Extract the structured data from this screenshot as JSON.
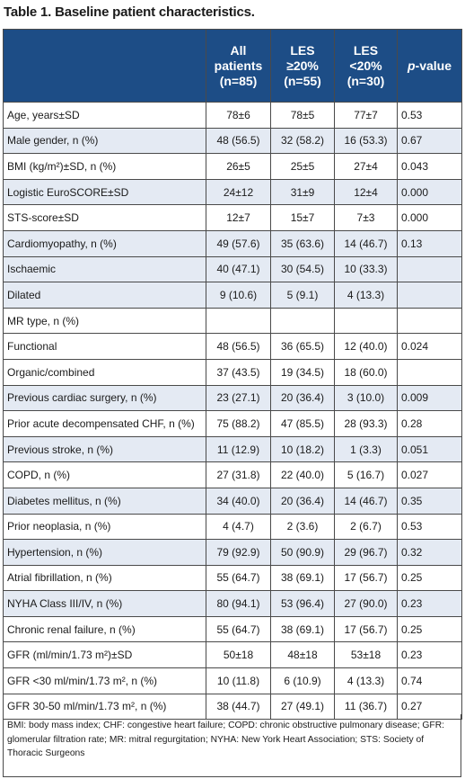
{
  "title": "Table 1. Baseline patient characteristics.",
  "header": {
    "all": [
      "All",
      "patients",
      "(n=85)"
    ],
    "les_hi": [
      "LES",
      "≥20%",
      "(n=55)"
    ],
    "les_lo": [
      "LES",
      "<20%",
      "(n=30)"
    ],
    "pvalue_p": "p",
    "pvalue_rest": "-value"
  },
  "rows": [
    {
      "label": "Age, years±SD",
      "all": "78±6",
      "hi": "78±5",
      "lo": "77±7",
      "p": "0.53"
    },
    {
      "label": "Male gender, n (%)",
      "all": "48 (56.5)",
      "hi": "32 (58.2)",
      "lo": "16 (53.3)",
      "p": "0.67"
    },
    {
      "label": "BMI (kg/m²)±SD, n (%)",
      "all": "26±5",
      "hi": "25±5",
      "lo": "27±4",
      "p": "0.043"
    },
    {
      "label": "Logistic EuroSCORE±SD",
      "all": "24±12",
      "hi": "31±9",
      "lo": "12±4",
      "p": "0.000"
    },
    {
      "label": "STS-score±SD",
      "all": "12±7",
      "hi": "15±7",
      "lo": "7±3",
      "p": "0.000"
    },
    {
      "label": "Cardiomyopathy, n (%)",
      "all": "49 (57.6)",
      "hi": "35 (63.6)",
      "lo": "14 (46.7)",
      "p": "0.13"
    },
    {
      "label": "Ischaemic",
      "all": "40 (47.1)",
      "hi": "30 (54.5)",
      "lo": "10 (33.3)",
      "p": ""
    },
    {
      "label": "Dilated",
      "all": "9 (10.6)",
      "hi": "5 (9.1)",
      "lo": "4 (13.3)",
      "p": ""
    },
    {
      "label": "MR type, n (%)",
      "all": "",
      "hi": "",
      "lo": "",
      "p": ""
    },
    {
      "label": "Functional",
      "all": "48 (56.5)",
      "hi": "36 (65.5)",
      "lo": "12 (40.0)",
      "p": "0.024"
    },
    {
      "label": "Organic/combined",
      "all": "37 (43.5)",
      "hi": "19 (34.5)",
      "lo": "18 (60.0)",
      "p": ""
    },
    {
      "label": "Previous cardiac surgery, n (%)",
      "all": "23 (27.1)",
      "hi": "20 (36.4)",
      "lo": "3 (10.0)",
      "p": "0.009"
    },
    {
      "label": "Prior acute decompensated CHF, n (%)",
      "all": "75 (88.2)",
      "hi": "47 (85.5)",
      "lo": "28 (93.3)",
      "p": "0.28"
    },
    {
      "label": "Previous stroke, n (%)",
      "all": "11 (12.9)",
      "hi": "10 (18.2)",
      "lo": "1 (3.3)",
      "p": "0.051"
    },
    {
      "label": "COPD, n (%)",
      "all": "27 (31.8)",
      "hi": "22 (40.0)",
      "lo": "5 (16.7)",
      "p": "0.027"
    },
    {
      "label": "Diabetes mellitus, n (%)",
      "all": "34 (40.0)",
      "hi": "20 (36.4)",
      "lo": "14 (46.7)",
      "p": "0.35"
    },
    {
      "label": "Prior neoplasia, n (%)",
      "all": "4 (4.7)",
      "hi": "2 (3.6)",
      "lo": "2 (6.7)",
      "p": "0.53"
    },
    {
      "label": "Hypertension, n (%)",
      "all": "79 (92.9)",
      "hi": "50 (90.9)",
      "lo": "29 (96.7)",
      "p": "0.32"
    },
    {
      "label": "Atrial fibrillation, n (%)",
      "all": "55 (64.7)",
      "hi": "38 (69.1)",
      "lo": "17 (56.7)",
      "p": "0.25"
    },
    {
      "label": "NYHA Class III/IV, n (%)",
      "all": "80 (94.1)",
      "hi": "53 (96.4)",
      "lo": "27 (90.0)",
      "p": "0.23"
    },
    {
      "label": "Chronic renal failure, n (%)",
      "all": "55 (64.7)",
      "hi": "38 (69.1)",
      "lo": "17 (56.7)",
      "p": "0.25"
    },
    {
      "label": "GFR (ml/min/1.73 m²)±SD",
      "all": "50±18",
      "hi": "48±18",
      "lo": "53±18",
      "p": "0.23"
    },
    {
      "label": "GFR <30 ml/min/1.73 m², n (%)",
      "all": "10 (11.8)",
      "hi": "6 (10.9)",
      "lo": "4 (13.3)",
      "p": "0.74"
    },
    {
      "label": "GFR 30-50 ml/min/1.73 m², n (%)",
      "all": "38 (44.7)",
      "hi": "27 (49.1)",
      "lo": "11 (36.7)",
      "p": "0.27"
    }
  ],
  "footnote": "BMI: body mass index; CHF: congestive heart failure; COPD: chronic obstructive pulmonary disease; GFR: glomerular filtration rate; MR: mitral regurgitation; NYHA: New York Heart Association; STS: Society of Thoracic Surgeons",
  "colors": {
    "header_bg": "#1d4d86",
    "shaded_bg": "#e4eaf3"
  }
}
